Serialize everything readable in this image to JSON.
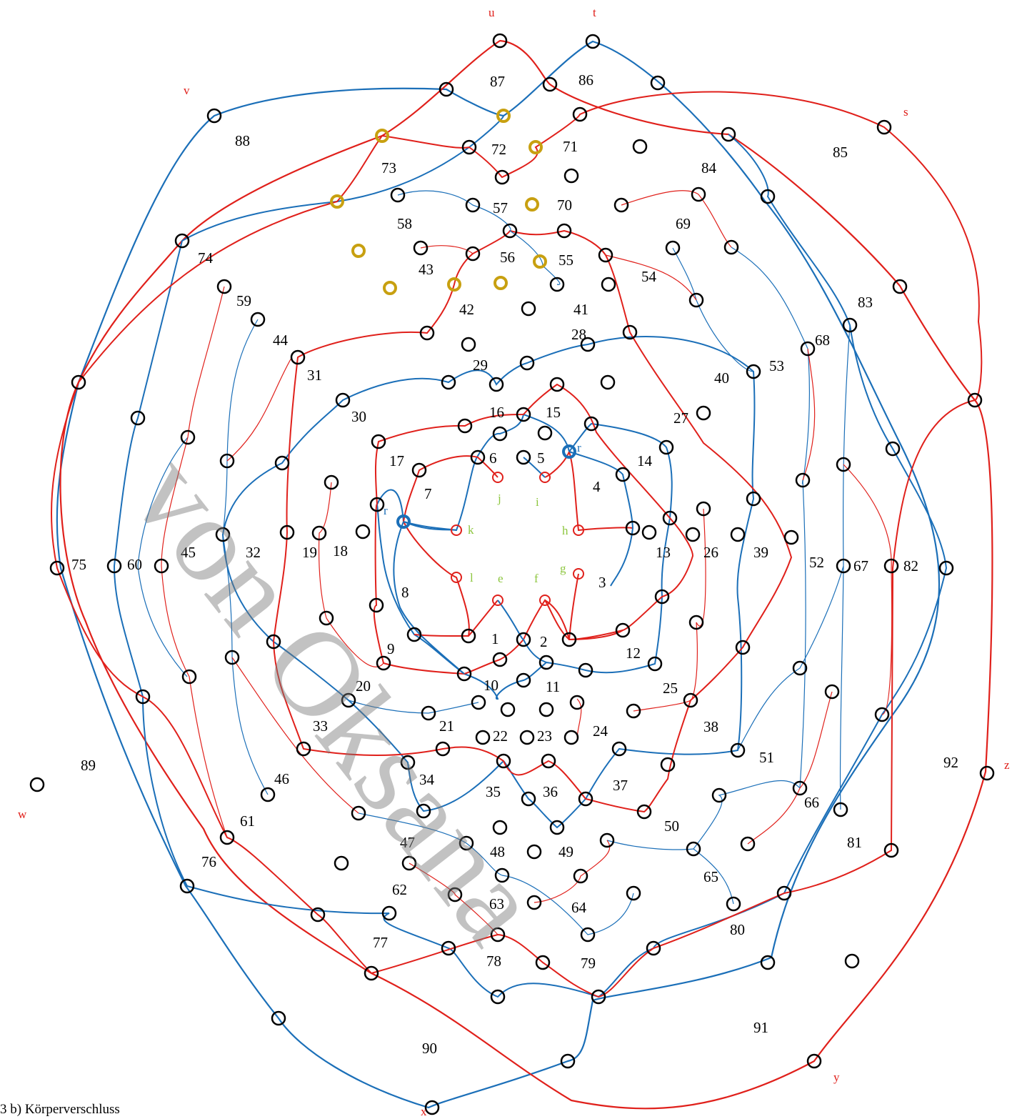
{
  "caption": "3 b) Körperverschluss",
  "watermark": "von Oksana",
  "colors": {
    "red": "#e0201b",
    "blue": "#1b6fb8",
    "gold": "#c8a010",
    "green": "#8dc63f",
    "black": "#000000"
  },
  "region_numbers": [
    "1",
    "2",
    "3",
    "4",
    "5",
    "6",
    "7",
    "8",
    "9",
    "10",
    "11",
    "12",
    "13",
    "14",
    "15",
    "16",
    "17",
    "18",
    "19",
    "20",
    "21",
    "22",
    "23",
    "24",
    "25",
    "26",
    "27",
    "28",
    "29",
    "30",
    "31",
    "32",
    "33",
    "34",
    "35",
    "36",
    "37",
    "38",
    "39",
    "40",
    "41",
    "42",
    "43",
    "44",
    "45",
    "46",
    "47",
    "48",
    "49",
    "50",
    "51",
    "52",
    "53",
    "54",
    "55",
    "56",
    "57",
    "58",
    "59",
    "60",
    "61",
    "62",
    "63",
    "64",
    "65",
    "66",
    "67",
    "68",
    "69",
    "70",
    "71",
    "72",
    "73",
    "74",
    "75",
    "76",
    "77",
    "78",
    "79",
    "80",
    "81",
    "82",
    "83",
    "84",
    "85",
    "86",
    "87",
    "88",
    "89",
    "90",
    "91",
    "92"
  ],
  "thread_ends": [
    "u",
    "t",
    "s",
    "z",
    "y",
    "x",
    "w",
    "v"
  ],
  "center_pins": [
    "e",
    "f",
    "g",
    "h",
    "i",
    "j",
    "k",
    "l"
  ],
  "start_pins": [
    "r",
    "r"
  ]
}
